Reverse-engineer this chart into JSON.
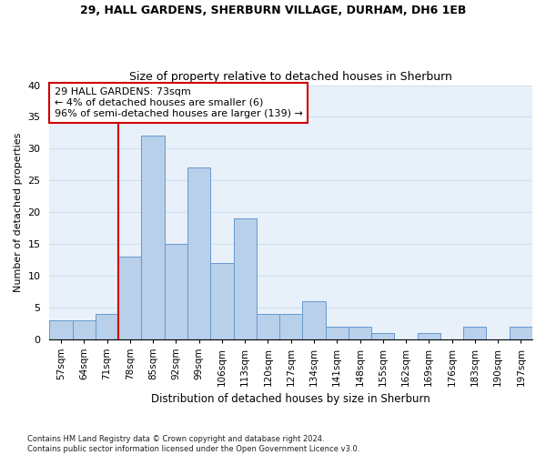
{
  "title": "29, HALL GARDENS, SHERBURN VILLAGE, DURHAM, DH6 1EB",
  "subtitle": "Size of property relative to detached houses in Sherburn",
  "xlabel": "Distribution of detached houses by size in Sherburn",
  "ylabel": "Number of detached properties",
  "bin_labels": [
    "57sqm",
    "64sqm",
    "71sqm",
    "78sqm",
    "85sqm",
    "92sqm",
    "99sqm",
    "106sqm",
    "113sqm",
    "120sqm",
    "127sqm",
    "134sqm",
    "141sqm",
    "148sqm",
    "155sqm",
    "162sqm",
    "169sqm",
    "176sqm",
    "183sqm",
    "190sqm",
    "197sqm"
  ],
  "bar_values": [
    3,
    3,
    4,
    13,
    32,
    15,
    27,
    12,
    19,
    4,
    4,
    6,
    2,
    2,
    1,
    0,
    1,
    0,
    2,
    0,
    2
  ],
  "bar_color": "#b8d0ea",
  "bar_edge_color": "#6699cc",
  "annotation_line1": "29 HALL GARDENS: 73sqm",
  "annotation_line2": "← 4% of detached houses are smaller (6)",
  "annotation_line3": "96% of semi-detached houses are larger (139) →",
  "annotation_box_color": "#ffffff",
  "annotation_box_edge": "#cc0000",
  "vline_color": "#cc0000",
  "grid_color": "#d0dff0",
  "background_color": "#e8f0fa",
  "footnote_line1": "Contains HM Land Registry data © Crown copyright and database right 2024.",
  "footnote_line2": "Contains public sector information licensed under the Open Government Licence v3.0.",
  "ylim": [
    0,
    40
  ],
  "yticks": [
    0,
    5,
    10,
    15,
    20,
    25,
    30,
    35,
    40
  ],
  "vline_bin": 2.5,
  "title_fontsize": 9,
  "subtitle_fontsize": 9,
  "axis_label_fontsize": 8,
  "tick_fontsize": 7.5
}
